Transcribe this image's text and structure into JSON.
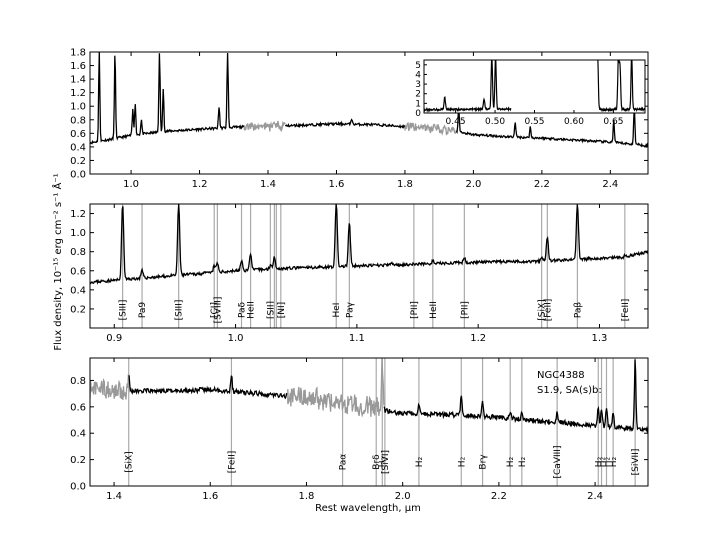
{
  "figure": {
    "ylabel": "Flux density, 10⁻¹⁵ erg cm⁻² s⁻¹ Å⁻¹",
    "xlabel": "Rest wavelength, μm",
    "colors": {
      "spectrum": "#000000",
      "telluric": "#999999",
      "marker": "#aaaaaa"
    }
  },
  "chart_data": [
    {
      "type": "line",
      "panel": "top",
      "xlim": [
        0.88,
        2.51
      ],
      "ylim": [
        0.0,
        1.8
      ],
      "xticks": [
        1.0,
        1.2,
        1.4,
        1.6,
        1.8,
        2.0,
        2.2,
        2.4
      ],
      "yticks": [
        0.0,
        0.2,
        0.4,
        0.6,
        0.8,
        1.0,
        1.2,
        1.4,
        1.6,
        1.8
      ],
      "xtick_labels": [
        "1.0",
        "1.2",
        "1.4",
        "1.6",
        "1.8",
        "2.0",
        "2.2",
        "2.4"
      ],
      "ytick_labels": [
        "0.0",
        "0.2",
        "0.4",
        "0.6",
        "0.8",
        "1.0",
        "1.2",
        "1.4",
        "1.6",
        "1.8"
      ],
      "continuum": [
        [
          0.88,
          0.46
        ],
        [
          0.95,
          0.52
        ],
        [
          1.0,
          0.57
        ],
        [
          1.1,
          0.63
        ],
        [
          1.2,
          0.66
        ],
        [
          1.3,
          0.69
        ],
        [
          1.4,
          0.7
        ],
        [
          1.5,
          0.72
        ],
        [
          1.6,
          0.74
        ],
        [
          1.7,
          0.73
        ],
        [
          1.8,
          0.7
        ],
        [
          1.9,
          0.66
        ],
        [
          2.0,
          0.58
        ],
        [
          2.1,
          0.55
        ],
        [
          2.2,
          0.53
        ],
        [
          2.3,
          0.5
        ],
        [
          2.4,
          0.47
        ],
        [
          2.51,
          0.42
        ]
      ],
      "lines": [
        [
          0.907,
          1.8
        ],
        [
          0.953,
          1.8
        ],
        [
          1.005,
          0.95
        ],
        [
          1.012,
          1.05
        ],
        [
          1.03,
          0.8
        ],
        [
          1.083,
          1.8
        ],
        [
          1.094,
          1.25
        ],
        [
          1.257,
          1.0
        ],
        [
          1.282,
          1.8
        ],
        [
          1.644,
          0.82
        ],
        [
          1.957,
          1.0
        ],
        [
          2.122,
          0.78
        ],
        [
          2.166,
          0.7
        ],
        [
          2.41,
          0.8
        ],
        [
          2.47,
          1.0
        ]
      ],
      "telluric_ranges": [
        [
          1.33,
          1.45
        ],
        [
          1.8,
          1.95
        ]
      ],
      "inset": {
        "xlim": [
          0.41,
          0.69
        ],
        "ylim": [
          0,
          5.5
        ],
        "xticks": [
          0.45,
          0.5,
          0.55,
          0.6,
          0.65
        ],
        "xtick_labels": [
          "0.45",
          "0.50",
          "0.55",
          "0.60",
          "0.65"
        ],
        "yticks": [
          0,
          1,
          2,
          3,
          4,
          5
        ],
        "ytick_labels": [
          "0",
          "1",
          "2",
          "3",
          "4",
          "5"
        ],
        "segments": [
          [
            0.41,
            0.52
          ],
          [
            0.63,
            0.69
          ]
        ],
        "continuum_value": 0.35,
        "lines": [
          [
            0.4363,
            1.3
          ],
          [
            0.4861,
            1.0
          ],
          [
            0.4959,
            5.4
          ],
          [
            0.5007,
            5.4
          ],
          [
            0.63,
            5.4
          ],
          [
            0.6563,
            5.4
          ],
          [
            0.6583,
            4.5
          ],
          [
            0.6731,
            5.4
          ]
        ]
      }
    },
    {
      "type": "line",
      "panel": "middle",
      "xlim": [
        0.88,
        1.34
      ],
      "ylim": [
        0.0,
        1.3
      ],
      "xticks": [
        0.9,
        1.0,
        1.1,
        1.2,
        1.3
      ],
      "xtick_labels": [
        "0.9",
        "1.0",
        "1.1",
        "1.2",
        "1.3"
      ],
      "yticks": [
        0.2,
        0.4,
        0.6,
        0.8,
        1.0,
        1.2
      ],
      "ytick_labels": [
        "0.2",
        "0.4",
        "0.6",
        "0.8",
        "1.0",
        "1.2"
      ],
      "continuum": [
        [
          0.88,
          0.48
        ],
        [
          0.9,
          0.5
        ],
        [
          0.95,
          0.55
        ],
        [
          1.0,
          0.6
        ],
        [
          1.05,
          0.63
        ],
        [
          1.1,
          0.65
        ],
        [
          1.15,
          0.67
        ],
        [
          1.2,
          0.69
        ],
        [
          1.25,
          0.7
        ],
        [
          1.3,
          0.73
        ],
        [
          1.32,
          0.74
        ],
        [
          1.34,
          0.8
        ]
      ],
      "peaks": [
        [
          0.9069,
          1.3
        ],
        [
          0.9229,
          0.6
        ],
        [
          0.9531,
          1.3
        ],
        [
          0.9824,
          0.65
        ],
        [
          0.985,
          0.68
        ],
        [
          1.0049,
          0.7
        ],
        [
          1.0124,
          0.78
        ],
        [
          1.0287,
          0.66
        ],
        [
          1.032,
          0.75
        ],
        [
          1.083,
          1.3
        ],
        [
          1.0938,
          1.1
        ],
        [
          1.1287,
          0.68
        ],
        [
          1.1626,
          0.7
        ],
        [
          1.1886,
          0.73
        ],
        [
          1.2523,
          0.75
        ],
        [
          1.257,
          0.95
        ],
        [
          1.2818,
          1.3
        ],
        [
          1.3209,
          0.76
        ]
      ],
      "markers": [
        {
          "x": 0.9069,
          "label": "[SIII]"
        },
        {
          "x": 0.9229,
          "label": "Pa9"
        },
        {
          "x": 0.9531,
          "label": "[SIII]"
        },
        {
          "x": 0.9824,
          "label": "[CI]"
        },
        {
          "x": 0.985,
          "label": "[SVIII]"
        },
        {
          "x": 1.0049,
          "label": "Paδ"
        },
        {
          "x": 1.0124,
          "label": "HeII"
        },
        {
          "x": 1.0287,
          "label": "[SII]"
        },
        {
          "x": 1.032,
          "label": ""
        },
        {
          "x": 1.0336,
          "label": ""
        },
        {
          "x": 1.0373,
          "label": "[NI]"
        },
        {
          "x": 1.083,
          "label": "HeI"
        },
        {
          "x": 1.0938,
          "label": "Paγ"
        },
        {
          "x": 1.147,
          "label": "[PII]"
        },
        {
          "x": 1.1626,
          "label": "HeII"
        },
        {
          "x": 1.1886,
          "label": "[PII]"
        },
        {
          "x": 1.2523,
          "label": "[SiX]"
        },
        {
          "x": 1.257,
          "label": "[FeII]"
        },
        {
          "x": 1.2818,
          "label": "Paβ"
        },
        {
          "x": 1.3209,
          "label": "[FeII]"
        }
      ]
    },
    {
      "type": "line",
      "panel": "bottom",
      "xlim": [
        1.35,
        2.51
      ],
      "ylim": [
        0.0,
        0.97
      ],
      "xticks": [
        1.4,
        1.6,
        1.8,
        2.0,
        2.2,
        2.4
      ],
      "xtick_labels": [
        "1.4",
        "1.6",
        "1.8",
        "2.0",
        "2.2",
        "2.4"
      ],
      "yticks": [
        0.0,
        0.2,
        0.4,
        0.6,
        0.8
      ],
      "ytick_labels": [
        "0.0",
        "0.2",
        "0.4",
        "0.6",
        "0.8"
      ],
      "continuum": [
        [
          1.35,
          0.75
        ],
        [
          1.4,
          0.72
        ],
        [
          1.5,
          0.72
        ],
        [
          1.6,
          0.73
        ],
        [
          1.7,
          0.7
        ],
        [
          1.8,
          0.67
        ],
        [
          1.9,
          0.62
        ],
        [
          1.95,
          0.58
        ],
        [
          2.0,
          0.55
        ],
        [
          2.1,
          0.54
        ],
        [
          2.2,
          0.52
        ],
        [
          2.3,
          0.49
        ],
        [
          2.4,
          0.46
        ],
        [
          2.51,
          0.42
        ]
      ],
      "peaks": [
        [
          1.4305,
          0.84
        ],
        [
          1.644,
          0.84
        ],
        [
          1.945,
          0.65
        ],
        [
          1.9576,
          0.97
        ],
        [
          2.0338,
          0.62
        ],
        [
          2.1218,
          0.69
        ],
        [
          2.1661,
          0.63
        ],
        [
          2.2235,
          0.56
        ],
        [
          2.2477,
          0.55
        ],
        [
          2.3211,
          0.56
        ],
        [
          2.4066,
          0.6
        ],
        [
          2.4134,
          0.58
        ],
        [
          2.4237,
          0.6
        ],
        [
          2.4375,
          0.56
        ],
        [
          2.4833,
          0.97
        ]
      ],
      "telluric_ranges": [
        [
          1.35,
          1.43
        ],
        [
          1.76,
          1.96
        ]
      ],
      "markers": [
        {
          "x": 1.4305,
          "label": "[SiX]"
        },
        {
          "x": 1.644,
          "label": "[FeII]"
        },
        {
          "x": 1.8751,
          "label": "Paα"
        },
        {
          "x": 1.945,
          "label": "Brδ"
        },
        {
          "x": 1.9576,
          "label": "H₂"
        },
        {
          "x": 1.963,
          "label": "[SiVI]"
        },
        {
          "x": 2.0338,
          "label": "H₂"
        },
        {
          "x": 2.1218,
          "label": "H₂"
        },
        {
          "x": 2.1661,
          "label": "Brγ"
        },
        {
          "x": 2.2235,
          "label": "H₂"
        },
        {
          "x": 2.2477,
          "label": "H₂"
        },
        {
          "x": 2.3211,
          "label": "[CaVIII]"
        },
        {
          "x": 2.4066,
          "label": "H₂"
        },
        {
          "x": 2.4134,
          "label": "H₂"
        },
        {
          "x": 2.4237,
          "label": "H₂"
        },
        {
          "x": 2.4375,
          "label": "H₂"
        },
        {
          "x": 2.4833,
          "label": "[SiVII]"
        }
      ],
      "annotation": [
        "NGC4388",
        "S1.9,  SA(s)b:"
      ]
    }
  ]
}
